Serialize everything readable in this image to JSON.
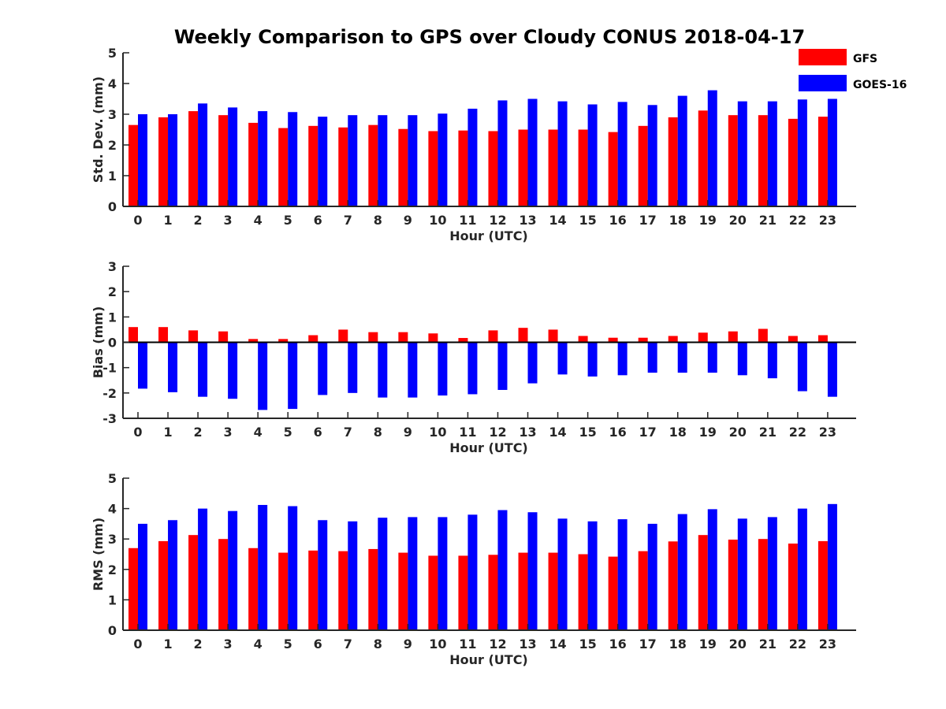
{
  "title": "Weekly Comparison to GPS over Cloudy CONUS 2018-04-17",
  "colors": {
    "GFS": "#ff0000",
    "GOES-16": "#0000ff",
    "axis": "#262626"
  },
  "chart_data": [
    {
      "type": "bar",
      "title": "Weekly Comparison to GPS over Cloudy CONUS 2018-04-17",
      "xlabel": "Hour (UTC)",
      "ylabel": "Std. Dev. (mm)",
      "ylim": [
        0,
        5
      ],
      "yticks": [
        0,
        1,
        2,
        3,
        4,
        5
      ],
      "grid": false,
      "legend": "top-right",
      "categories": [
        "0",
        "1",
        "2",
        "3",
        "4",
        "5",
        "6",
        "7",
        "8",
        "9",
        "10",
        "11",
        "12",
        "13",
        "14",
        "15",
        "16",
        "17",
        "18",
        "19",
        "20",
        "21",
        "22",
        "23"
      ],
      "series": [
        {
          "name": "GFS",
          "values": [
            2.65,
            2.9,
            3.1,
            2.97,
            2.72,
            2.55,
            2.62,
            2.57,
            2.65,
            2.52,
            2.45,
            2.47,
            2.45,
            2.5,
            2.5,
            2.5,
            2.42,
            2.62,
            2.9,
            3.12,
            2.97,
            2.97,
            2.85,
            2.92
          ]
        },
        {
          "name": "GOES-16",
          "values": [
            3.0,
            3.0,
            3.35,
            3.22,
            3.1,
            3.07,
            2.92,
            2.97,
            2.97,
            2.97,
            3.02,
            3.18,
            3.45,
            3.5,
            3.42,
            3.32,
            3.4,
            3.3,
            3.6,
            3.78,
            3.42,
            3.42,
            3.48,
            3.5
          ]
        }
      ]
    },
    {
      "type": "bar",
      "xlabel": "Hour (UTC)",
      "ylabel": "Bias (mm)",
      "ylim": [
        -3,
        3
      ],
      "yticks": [
        -3,
        -2,
        -1,
        0,
        1,
        2,
        3
      ],
      "grid": false,
      "categories": [
        "0",
        "1",
        "2",
        "3",
        "4",
        "5",
        "6",
        "7",
        "8",
        "9",
        "10",
        "11",
        "12",
        "13",
        "14",
        "15",
        "16",
        "17",
        "18",
        "19",
        "20",
        "21",
        "22",
        "23"
      ],
      "series": [
        {
          "name": "GFS",
          "values": [
            0.6,
            0.6,
            0.47,
            0.43,
            0.13,
            0.13,
            0.28,
            0.5,
            0.4,
            0.4,
            0.35,
            0.17,
            0.47,
            0.57,
            0.5,
            0.25,
            0.18,
            0.18,
            0.25,
            0.38,
            0.43,
            0.53,
            0.25,
            0.28
          ]
        },
        {
          "name": "GOES-16",
          "values": [
            -1.83,
            -1.97,
            -2.15,
            -2.23,
            -2.67,
            -2.63,
            -2.08,
            -2.0,
            -2.18,
            -2.18,
            -2.1,
            -2.05,
            -1.88,
            -1.62,
            -1.27,
            -1.35,
            -1.3,
            -1.2,
            -1.2,
            -1.2,
            -1.3,
            -1.42,
            -1.93,
            -2.15
          ]
        }
      ]
    },
    {
      "type": "bar",
      "xlabel": "Hour (UTC)",
      "ylabel": "RMS (mm)",
      "ylim": [
        0,
        5
      ],
      "yticks": [
        0,
        1,
        2,
        3,
        4,
        5
      ],
      "grid": false,
      "categories": [
        "0",
        "1",
        "2",
        "3",
        "4",
        "5",
        "6",
        "7",
        "8",
        "9",
        "10",
        "11",
        "12",
        "13",
        "14",
        "15",
        "16",
        "17",
        "18",
        "19",
        "20",
        "21",
        "22",
        "23"
      ],
      "series": [
        {
          "name": "GFS",
          "values": [
            2.7,
            2.93,
            3.13,
            3.0,
            2.7,
            2.55,
            2.62,
            2.6,
            2.67,
            2.55,
            2.45,
            2.45,
            2.48,
            2.55,
            2.55,
            2.5,
            2.42,
            2.6,
            2.92,
            3.13,
            2.98,
            3.0,
            2.85,
            2.93
          ]
        },
        {
          "name": "GOES-16",
          "values": [
            3.5,
            3.62,
            4.0,
            3.92,
            4.12,
            4.08,
            3.62,
            3.58,
            3.7,
            3.72,
            3.72,
            3.8,
            3.95,
            3.88,
            3.67,
            3.58,
            3.65,
            3.5,
            3.82,
            3.98,
            3.67,
            3.72,
            4.0,
            4.15
          ]
        }
      ]
    }
  ]
}
